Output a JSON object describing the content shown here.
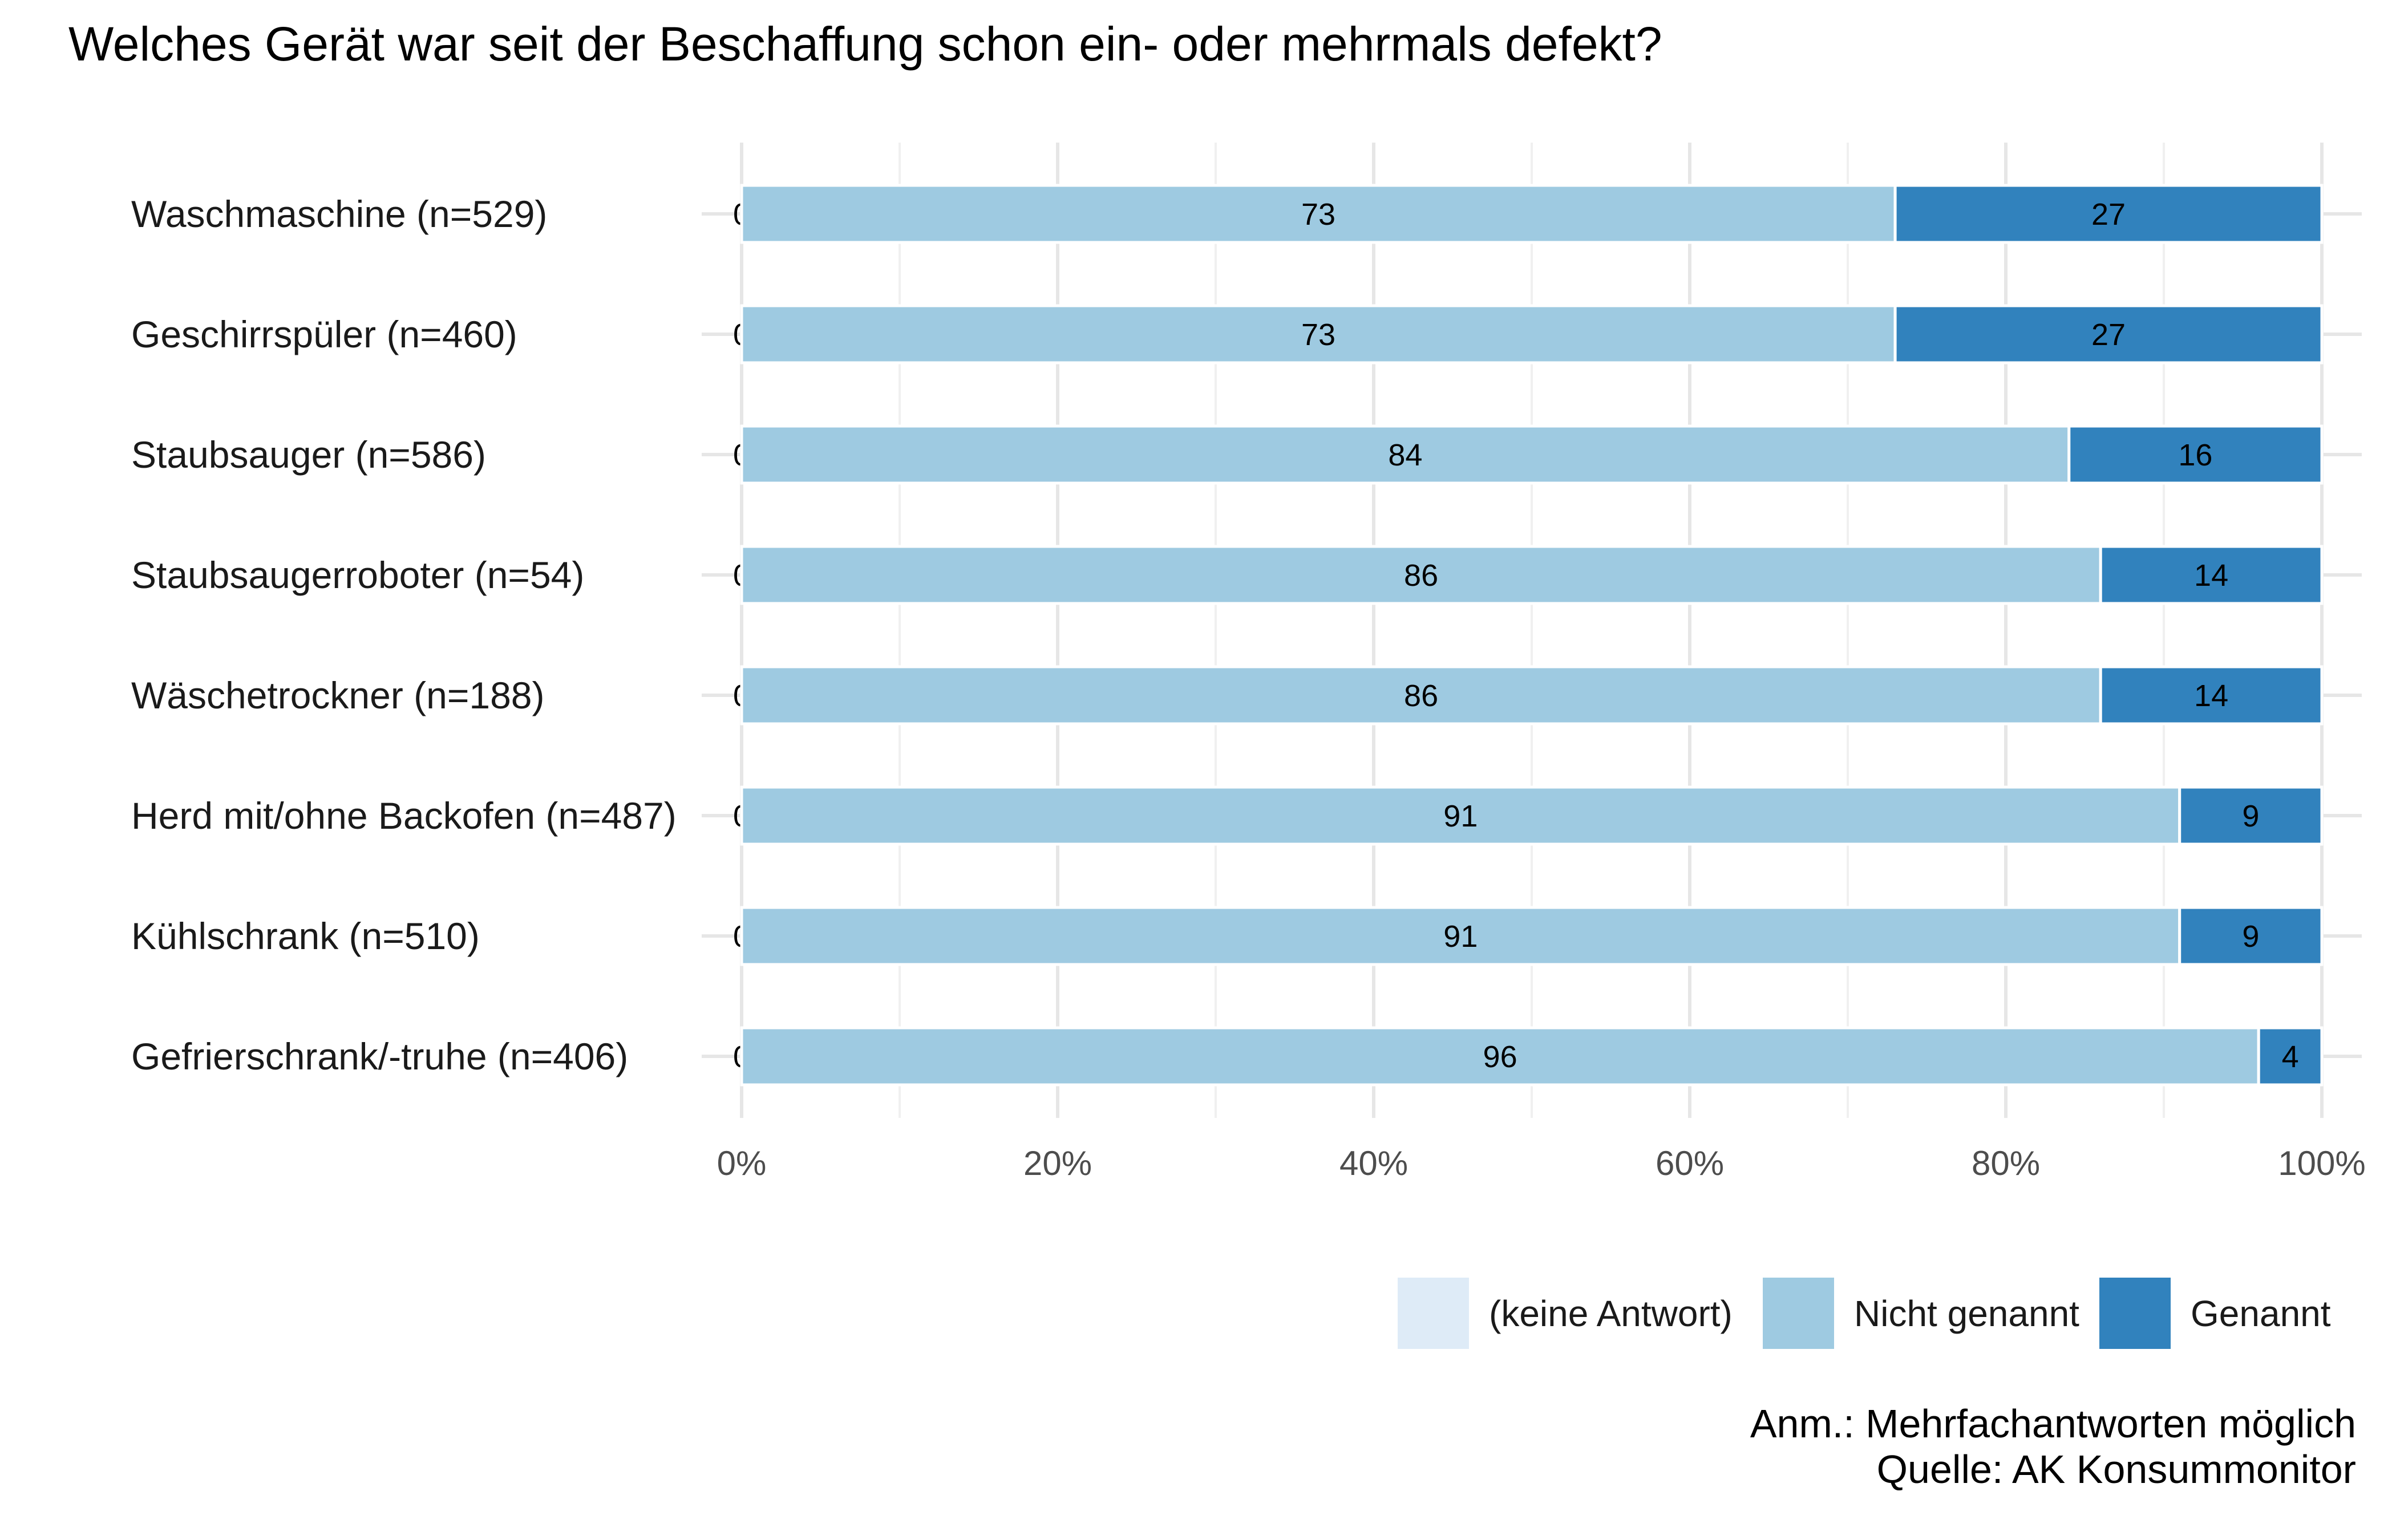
{
  "chart_data": {
    "type": "bar",
    "orientation": "horizontal",
    "stacked": true,
    "title": "Welches Gerät war seit der Beschaffung schon ein- oder mehrmals defekt?",
    "categories": [
      "Waschmaschine (n=529)",
      "Geschirrspüler (n=460)",
      "Staubsauger (n=586)",
      "Staubsaugerroboter (n=54)",
      "Wäschetrockner (n=188)",
      "Herd mit/ohne Backofen (n=487)",
      "Kühlschrank (n=510)",
      "Gefrierschrank/-truhe (n=406)"
    ],
    "series": [
      {
        "name": "(keine Antwort)",
        "color": "#deebf7",
        "values": [
          0,
          0,
          0,
          0,
          0,
          0,
          0,
          0
        ],
        "labels": [
          "0",
          "0",
          "0",
          "0",
          "0",
          "0",
          "0",
          "0"
        ]
      },
      {
        "name": "Nicht genannt",
        "color": "#9ecae1",
        "values": [
          73,
          73,
          84,
          86,
          86,
          91,
          91,
          96
        ],
        "labels": [
          "73",
          "73",
          "84",
          "86",
          "86",
          "91",
          "91",
          "96"
        ]
      },
      {
        "name": "Genannt",
        "color": "#3182bd",
        "values": [
          27,
          27,
          16,
          14,
          14,
          9,
          9,
          4
        ],
        "labels": [
          "27",
          "27",
          "16",
          "14",
          "14",
          "9",
          "9",
          "4"
        ]
      }
    ],
    "xlim": [
      0,
      100
    ],
    "x_ticks": [
      "0%",
      "20%",
      "40%",
      "60%",
      "80%",
      "100%"
    ],
    "grid": true,
    "legend_position": "bottom-right",
    "caption": [
      "Anm.: Mehrfachantworten möglich",
      "Quelle: AK Konsummonitor"
    ]
  }
}
